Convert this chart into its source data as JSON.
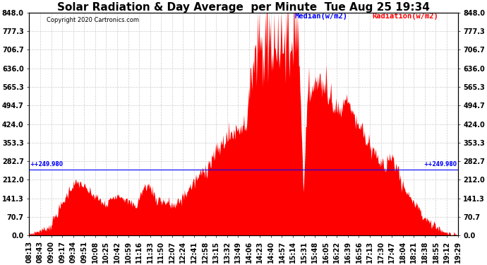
{
  "title": "Solar Radiation & Day Average  per Minute  Tue Aug 25 19:34",
  "copyright": "Copyright 2020 Cartronics.com",
  "legend_median": "Median(w/m2)",
  "legend_radiation": "Radiation(w/m2)",
  "yticks": [
    0.0,
    70.7,
    141.3,
    212.0,
    282.7,
    353.3,
    424.0,
    494.7,
    565.3,
    636.0,
    706.7,
    777.3,
    848.0
  ],
  "median_line_y": 249.98,
  "median_label": "+249.980",
  "ymin": 0.0,
  "ymax": 848.0,
  "background_color": "#ffffff",
  "fill_color": "#ff0000",
  "grid_color": "#cccccc",
  "title_fontsize": 11,
  "tick_fontsize": 7,
  "x_tick_labels": [
    "08:13",
    "08:43",
    "09:00",
    "09:17",
    "09:34",
    "09:51",
    "10:08",
    "10:25",
    "10:42",
    "10:59",
    "11:16",
    "11:33",
    "11:50",
    "12:07",
    "12:24",
    "12:41",
    "12:58",
    "13:15",
    "13:32",
    "13:49",
    "14:06",
    "14:23",
    "14:40",
    "14:57",
    "15:14",
    "15:31",
    "15:48",
    "16:05",
    "16:22",
    "16:39",
    "16:56",
    "17:13",
    "17:30",
    "17:47",
    "18:04",
    "18:21",
    "18:38",
    "18:55",
    "19:12",
    "19:29"
  ],
  "n_points": 680
}
